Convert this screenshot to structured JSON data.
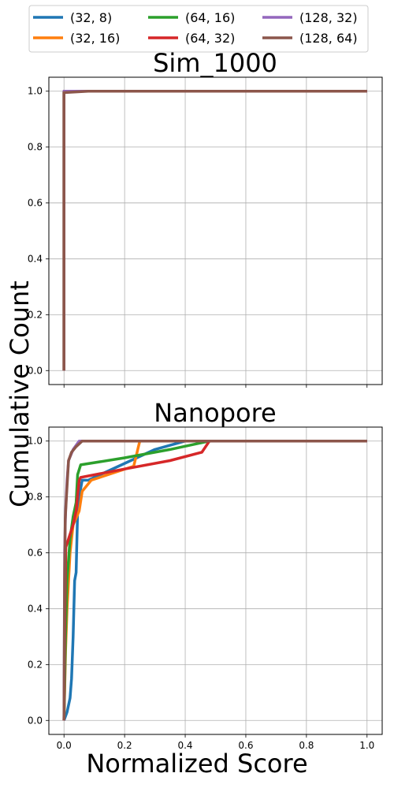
{
  "figure": {
    "ylabel": "Cumulative Count",
    "xlabel": "Normalized Score"
  },
  "legend": {
    "entries": [
      {
        "label": "(32, 8)",
        "color": "#1f77b4"
      },
      {
        "label": "(32, 16)",
        "color": "#ff7f0e"
      },
      {
        "label": "(64, 16)",
        "color": "#2ca02c"
      },
      {
        "label": "(64, 32)",
        "color": "#d62728"
      },
      {
        "label": "(128, 32)",
        "color": "#9467bd"
      },
      {
        "label": "(128, 64)",
        "color": "#8c564b"
      }
    ],
    "placement": "top-center",
    "columns": 3
  },
  "chart_data": [
    {
      "type": "line",
      "title": "Sim_1000",
      "xlim": [
        -0.05,
        1.05
      ],
      "ylim": [
        -0.05,
        1.05
      ],
      "xticks": [
        0.0,
        0.2,
        0.4,
        0.6,
        0.8,
        1.0
      ],
      "xtick_labels_visible": false,
      "yticks": [
        0.0,
        0.2,
        0.4,
        0.6,
        0.8,
        1.0
      ],
      "ytick_labels": [
        "0.0",
        "0.2",
        "0.4",
        "0.6",
        "0.8",
        "1.0"
      ],
      "grid": true,
      "series": [
        {
          "name": "(32, 8)",
          "color": "#1f77b4",
          "points": [
            [
              0,
              0
            ],
            [
              0,
              1.0
            ],
            [
              0.08,
              1.0
            ],
            [
              1.0,
              1.0
            ]
          ]
        },
        {
          "name": "(32, 16)",
          "color": "#ff7f0e",
          "points": [
            [
              0,
              0
            ],
            [
              0,
              1.0
            ],
            [
              0.08,
              1.0
            ],
            [
              1.0,
              1.0
            ]
          ]
        },
        {
          "name": "(64, 16)",
          "color": "#2ca02c",
          "points": [
            [
              0,
              0
            ],
            [
              0,
              1.0
            ],
            [
              0.08,
              1.0
            ],
            [
              1.0,
              1.0
            ]
          ]
        },
        {
          "name": "(64, 32)",
          "color": "#d62728",
          "points": [
            [
              0,
              0
            ],
            [
              0,
              1.0
            ],
            [
              0.08,
              1.0
            ],
            [
              1.0,
              1.0
            ]
          ]
        },
        {
          "name": "(128, 32)",
          "color": "#9467bd",
          "points": [
            [
              0,
              0
            ],
            [
              0,
              1.0
            ],
            [
              0.08,
              1.0
            ],
            [
              1.0,
              1.0
            ]
          ]
        },
        {
          "name": "(128, 64)",
          "color": "#8c564b",
          "points": [
            [
              0,
              0
            ],
            [
              0,
              0.995
            ],
            [
              0.08,
              1.0
            ],
            [
              1.0,
              1.0
            ]
          ]
        }
      ]
    },
    {
      "type": "line",
      "title": "Nanopore",
      "xlim": [
        -0.05,
        1.05
      ],
      "ylim": [
        -0.05,
        1.05
      ],
      "xticks": [
        0.0,
        0.2,
        0.4,
        0.6,
        0.8,
        1.0
      ],
      "xtick_labels": [
        "0.0",
        "0.2",
        "0.4",
        "0.6",
        "0.8",
        "1.0"
      ],
      "yticks": [
        0.0,
        0.2,
        0.4,
        0.6,
        0.8,
        1.0
      ],
      "ytick_labels": [
        "0.0",
        "0.2",
        "0.4",
        "0.6",
        "0.8",
        "1.0"
      ],
      "grid": true,
      "series": [
        {
          "name": "(32, 8)",
          "color": "#1f77b4",
          "points": [
            [
              0,
              0
            ],
            [
              0.01,
              0.03
            ],
            [
              0.02,
              0.08
            ],
            [
              0.025,
              0.15
            ],
            [
              0.03,
              0.3
            ],
            [
              0.035,
              0.5
            ],
            [
              0.04,
              0.53
            ],
            [
              0.045,
              0.75
            ],
            [
              0.05,
              0.8
            ],
            [
              0.06,
              0.86
            ],
            [
              0.08,
              0.86
            ],
            [
              0.2,
              0.92
            ],
            [
              0.3,
              0.97
            ],
            [
              0.4,
              1.0
            ],
            [
              0.5,
              1.0
            ],
            [
              1.0,
              1.0
            ]
          ]
        },
        {
          "name": "(32, 16)",
          "color": "#ff7f0e",
          "points": [
            [
              0,
              0
            ],
            [
              0.005,
              0.25
            ],
            [
              0.01,
              0.4
            ],
            [
              0.02,
              0.6
            ],
            [
              0.03,
              0.7
            ],
            [
              0.05,
              0.75
            ],
            [
              0.06,
              0.82
            ],
            [
              0.09,
              0.86
            ],
            [
              0.23,
              0.91
            ],
            [
              0.25,
              1.0
            ],
            [
              1.0,
              1.0
            ]
          ]
        },
        {
          "name": "(64, 16)",
          "color": "#2ca02c",
          "points": [
            [
              0,
              0
            ],
            [
              0.005,
              0.3
            ],
            [
              0.01,
              0.5
            ],
            [
              0.02,
              0.65
            ],
            [
              0.03,
              0.73
            ],
            [
              0.04,
              0.78
            ],
            [
              0.045,
              0.88
            ],
            [
              0.055,
              0.915
            ],
            [
              0.2,
              0.94
            ],
            [
              0.35,
              0.97
            ],
            [
              0.48,
              1.0
            ],
            [
              1.0,
              1.0
            ]
          ]
        },
        {
          "name": "(64, 32)",
          "color": "#d62728",
          "points": [
            [
              0,
              0
            ],
            [
              0.003,
              0.4
            ],
            [
              0.006,
              0.62
            ],
            [
              0.015,
              0.65
            ],
            [
              0.03,
              0.7
            ],
            [
              0.04,
              0.75
            ],
            [
              0.05,
              0.86
            ],
            [
              0.055,
              0.87
            ],
            [
              0.2,
              0.9
            ],
            [
              0.35,
              0.93
            ],
            [
              0.455,
              0.96
            ],
            [
              0.48,
              1.0
            ],
            [
              1.0,
              1.0
            ]
          ]
        },
        {
          "name": "(128, 32)",
          "color": "#9467bd",
          "points": [
            [
              0,
              0
            ],
            [
              0.002,
              0.6
            ],
            [
              0.005,
              0.75
            ],
            [
              0.01,
              0.86
            ],
            [
              0.015,
              0.93
            ],
            [
              0.03,
              0.97
            ],
            [
              0.05,
              1.0
            ],
            [
              1.0,
              1.0
            ]
          ]
        },
        {
          "name": "(128, 64)",
          "color": "#8c564b",
          "points": [
            [
              0,
              0
            ],
            [
              0.002,
              0.5
            ],
            [
              0.004,
              0.72
            ],
            [
              0.008,
              0.8
            ],
            [
              0.015,
              0.93
            ],
            [
              0.025,
              0.96
            ],
            [
              0.04,
              0.98
            ],
            [
              0.06,
              1.0
            ],
            [
              1.0,
              1.0
            ]
          ]
        }
      ]
    }
  ]
}
